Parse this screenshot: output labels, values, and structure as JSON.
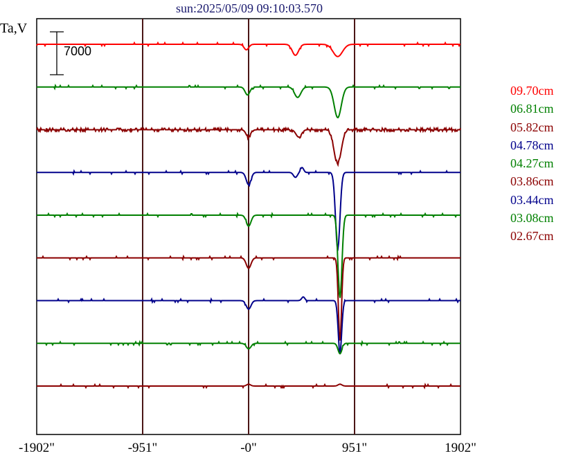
{
  "chart_data": {
    "type": "line",
    "title": "sun:2025/05/09 09:10:03.570",
    "ylabel": "Ta,V",
    "scale_bar": {
      "label": "7000",
      "value": 7000
    },
    "xlim": [
      -1902,
      1902
    ],
    "x_ticks": [
      {
        "value": -1902,
        "label": "-1902\""
      },
      {
        "value": -951,
        "label": "-951\""
      },
      {
        "value": 0,
        "label": "-0\""
      },
      {
        "value": 951,
        "label": "951\""
      },
      {
        "value": 1902,
        "label": "1902\""
      }
    ],
    "vertical_lines": [
      -951,
      0,
      951
    ],
    "series": [
      {
        "name": "09.70cm",
        "color": "#ff0000",
        "noise": 0.05,
        "dips": [
          {
            "x": -20,
            "depth": 900,
            "width": 30
          },
          {
            "x": 420,
            "depth": 1800,
            "width": 40
          },
          {
            "x": 800,
            "depth": 2000,
            "width": 60
          }
        ],
        "peaks": []
      },
      {
        "name": "06.81cm",
        "color": "#008000",
        "noise": 0.08,
        "dips": [
          {
            "x": -10,
            "depth": 1300,
            "width": 30
          },
          {
            "x": 440,
            "depth": 1700,
            "width": 40
          },
          {
            "x": 800,
            "depth": 5000,
            "width": 45
          }
        ],
        "peaks": []
      },
      {
        "name": "05.82cm",
        "color": "#8b0000",
        "noise": 0.35,
        "dips": [
          {
            "x": 0,
            "depth": 1300,
            "width": 30
          },
          {
            "x": 450,
            "depth": 1200,
            "width": 35
          },
          {
            "x": 800,
            "depth": 5500,
            "width": 45
          }
        ],
        "peaks": []
      },
      {
        "name": "04.78cm",
        "color": "#00008b",
        "noise": 0.05,
        "dips": [
          {
            "x": 0,
            "depth": 2000,
            "width": 30
          },
          {
            "x": 420,
            "depth": 800,
            "width": 25
          },
          {
            "x": 800,
            "depth": 12500,
            "width": 28
          }
        ],
        "peaks": [
          {
            "x": 480,
            "height": 800,
            "width": 20
          }
        ]
      },
      {
        "name": "04.27cm",
        "color": "#008000",
        "noise": 0.05,
        "dips": [
          {
            "x": 0,
            "depth": 1800,
            "width": 30
          },
          {
            "x": 820,
            "depth": 13500,
            "width": 25
          }
        ],
        "peaks": []
      },
      {
        "name": "03.86cm",
        "color": "#8b0000",
        "noise": 0.05,
        "dips": [
          {
            "x": 0,
            "depth": 1700,
            "width": 30
          },
          {
            "x": 820,
            "depth": 13500,
            "width": 20
          }
        ],
        "peaks": []
      },
      {
        "name": "03.44cm",
        "color": "#00008b",
        "noise": 0.05,
        "dips": [
          {
            "x": 0,
            "depth": 1400,
            "width": 30
          },
          {
            "x": 820,
            "depth": 8500,
            "width": 22
          }
        ],
        "peaks": [
          {
            "x": 490,
            "height": 600,
            "width": 20
          }
        ]
      },
      {
        "name": "03.08cm",
        "color": "#008000",
        "noise": 0.05,
        "dips": [
          {
            "x": 0,
            "depth": 900,
            "width": 30
          },
          {
            "x": 820,
            "depth": 1700,
            "width": 25
          }
        ],
        "peaks": []
      },
      {
        "name": "02.67cm",
        "color": "#8b0000",
        "noise": 0.05,
        "dips": [],
        "peaks": [
          {
            "x": 0,
            "height": 300,
            "width": 25
          },
          {
            "x": 820,
            "height": 300,
            "width": 25
          }
        ]
      }
    ],
    "grid": false
  }
}
